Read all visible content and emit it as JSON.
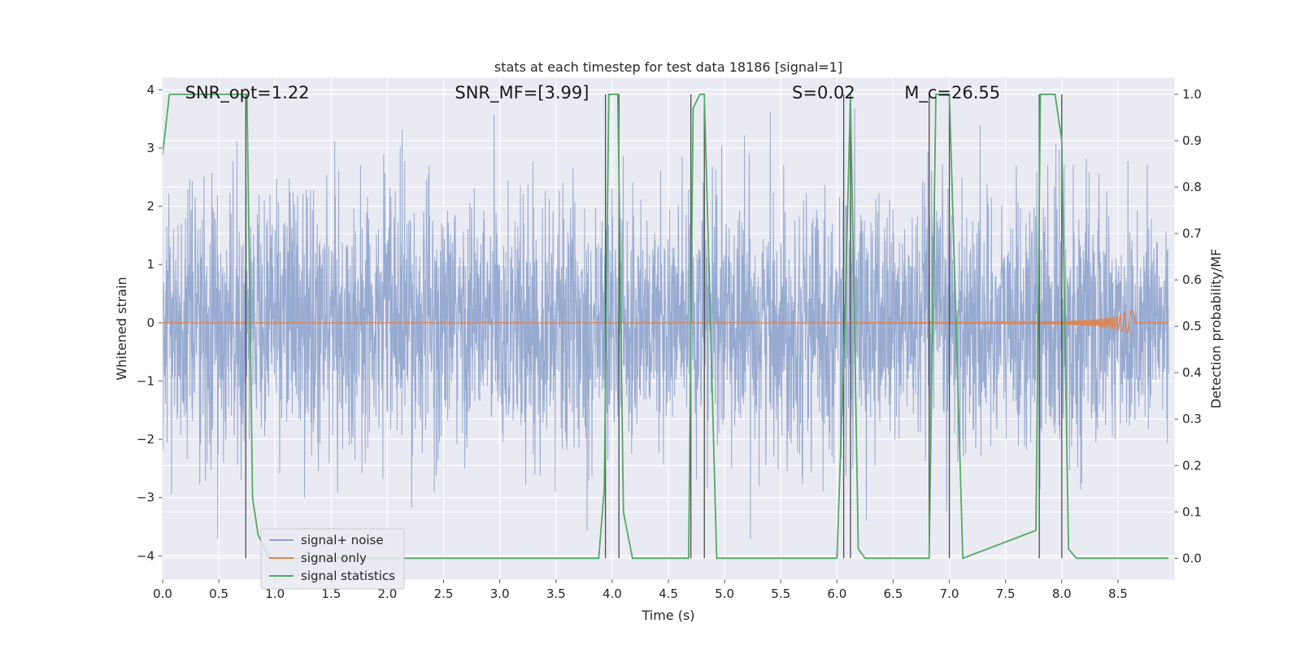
{
  "chart_data": {
    "type": "line",
    "title": "stats at each timestep for test data 18186 [signal=1]",
    "xlabel": "Time (s)",
    "ylabel_left": "Whitened strain",
    "ylabel_right": "Detection probability/MF",
    "xlim": [
      0.0,
      9.0
    ],
    "ylim_left": [
      -4.4,
      4.2
    ],
    "ylim_right": [
      -0.045,
      1.035
    ],
    "x_ticks": [
      0.0,
      0.5,
      1.0,
      1.5,
      2.0,
      2.5,
      3.0,
      3.5,
      4.0,
      4.5,
      5.0,
      5.5,
      6.0,
      6.5,
      7.0,
      7.5,
      8.0,
      8.5
    ],
    "x_tick_labels": [
      "0.0",
      "0.5",
      "1.0",
      "1.5",
      "2.0",
      "2.5",
      "3.0",
      "3.5",
      "4.0",
      "4.5",
      "5.0",
      "5.5",
      "6.0",
      "6.5",
      "7.0",
      "7.5",
      "8.0",
      "8.5"
    ],
    "y_left_ticks": [
      -4,
      -3,
      -2,
      -1,
      0,
      1,
      2,
      3,
      4
    ],
    "y_left_tick_labels": [
      "−4",
      "−3",
      "−2",
      "−1",
      "0",
      "1",
      "2",
      "3",
      "4"
    ],
    "y_right_ticks": [
      0.0,
      0.1,
      0.2,
      0.3,
      0.4,
      0.5,
      0.6,
      0.7,
      0.8,
      0.9,
      1.0
    ],
    "y_right_tick_labels": [
      "0.0",
      "0.1",
      "0.2",
      "0.3",
      "0.4",
      "0.5",
      "0.6",
      "0.7",
      "0.8",
      "0.9",
      "1.0"
    ],
    "grid": true,
    "legend_position": "bottom-left",
    "annotations": [
      {
        "id": "snr-opt",
        "text": "SNR_opt=1.22",
        "x": 0.2,
        "y": 3.85
      },
      {
        "id": "snr-mf",
        "text": "SNR_MF=[3.99]",
        "x": 2.6,
        "y": 3.85
      },
      {
        "id": "s-value",
        "text": "S=0.02",
        "x": 5.6,
        "y": 3.85
      },
      {
        "id": "mc-value",
        "text": "M_c=26.55",
        "x": 6.6,
        "y": 3.85
      }
    ],
    "series": [
      {
        "name": "signal+ noise",
        "color": "#8ea3cc",
        "axis": "left",
        "kind": "noise",
        "typical_amplitude": 1.5,
        "peak_amplitude": 3.7
      },
      {
        "name": "signal only",
        "color": "#dd8452",
        "axis": "left",
        "kind": "chirp",
        "x": [
          0.0,
          7.5,
          8.0,
          8.3,
          8.5,
          8.6,
          8.65
        ],
        "envelope": [
          0.0,
          0.01,
          0.03,
          0.06,
          0.12,
          0.2,
          0.25
        ]
      },
      {
        "name": "signal statistics",
        "color": "#55a868",
        "axis": "right",
        "kind": "line",
        "x": [
          0.0,
          0.06,
          0.12,
          0.3,
          0.73,
          0.75,
          0.8,
          0.85,
          0.95,
          3.88,
          3.93,
          3.97,
          4.05,
          4.1,
          4.18,
          4.68,
          4.72,
          4.78,
          4.82,
          4.93,
          6.0,
          6.07,
          6.12,
          6.19,
          6.25,
          6.82,
          6.88,
          6.95,
          7.0,
          7.12,
          7.77,
          7.81,
          7.88,
          7.94,
          8.0,
          8.06,
          8.13,
          8.95
        ],
        "y": [
          0.87,
          1.0,
          1.0,
          1.0,
          1.0,
          1.0,
          0.13,
          0.05,
          0.0,
          0.0,
          0.15,
          1.0,
          1.0,
          0.1,
          0.0,
          0.0,
          0.97,
          1.0,
          1.0,
          0.0,
          0.0,
          0.5,
          1.0,
          0.02,
          0.0,
          0.0,
          1.0,
          1.0,
          1.0,
          0.0,
          0.06,
          1.0,
          1.0,
          1.0,
          0.9,
          0.02,
          0.0,
          0.0
        ]
      }
    ],
    "vertical_lines": {
      "color": "#4d4d4d",
      "x": [
        0.74,
        3.94,
        4.06,
        4.7,
        4.82,
        6.06,
        6.12,
        6.82,
        7.0,
        7.8,
        8.0
      ],
      "y_top": 1.0,
      "y_bottom": 0.0
    }
  }
}
